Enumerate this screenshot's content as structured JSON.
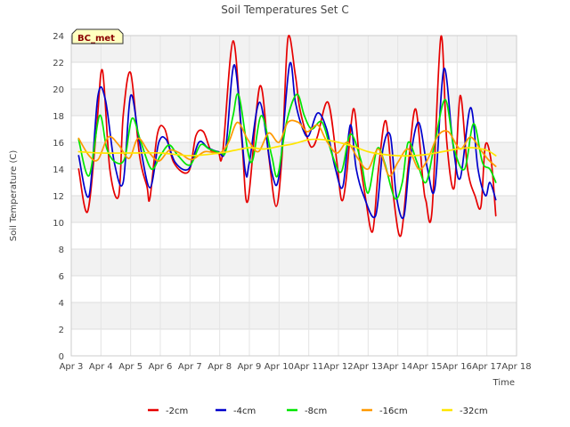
{
  "chart_data": {
    "type": "line",
    "title": "Soil Temperatures Set C",
    "xlabel": "Time",
    "ylabel": "Soil Temperature (C)",
    "badge": "BC_met",
    "ylim": [
      0,
      24
    ],
    "xlim": [
      0,
      15
    ],
    "y_ticks": [
      0,
      2,
      4,
      6,
      8,
      10,
      12,
      14,
      16,
      18,
      20,
      22,
      24
    ],
    "x_ticks": [
      {
        "value": 0,
        "label": "Apr 3"
      },
      {
        "value": 1,
        "label": "Apr 4"
      },
      {
        "value": 2,
        "label": "Apr 5"
      },
      {
        "value": 3,
        "label": "Apr 6"
      },
      {
        "value": 4,
        "label": "Apr 7"
      },
      {
        "value": 5,
        "label": "Apr 8"
      },
      {
        "value": 6,
        "label": "Apr 9"
      },
      {
        "value": 7,
        "label": "Apr 10"
      },
      {
        "value": 8,
        "label": "Apr 11"
      },
      {
        "value": 9,
        "label": "Apr 12"
      },
      {
        "value": 10,
        "label": "Apr 13"
      },
      {
        "value": 11,
        "label": "Apr 14"
      },
      {
        "value": 12,
        "label": "Apr 15"
      },
      {
        "value": 13,
        "label": "Apr 16"
      },
      {
        "value": 14,
        "label": "Apr 17"
      },
      {
        "value": 15,
        "label": "Apr 18"
      }
    ],
    "grid": true,
    "legend_position": "bottom",
    "series": [
      {
        "name": "-2cm",
        "color": "#e60000",
        "x": [
          0.25,
          0.55,
          0.85,
          1.05,
          1.3,
          1.6,
          1.75,
          2.0,
          2.3,
          2.55,
          2.65,
          2.9,
          3.15,
          3.45,
          3.95,
          4.2,
          4.45,
          4.7,
          4.95,
          5.1,
          5.45,
          5.75,
          5.95,
          6.35,
          6.65,
          6.9,
          7.1,
          7.3,
          7.55,
          7.7,
          8.0,
          8.15,
          8.3,
          8.65,
          8.95,
          9.1,
          9.25,
          9.5,
          9.7,
          9.9,
          10.15,
          10.35,
          10.6,
          10.85,
          11.1,
          11.35,
          11.6,
          11.85,
          11.95,
          12.15,
          12.45,
          12.65,
          12.9,
          13.1,
          13.35,
          13.6,
          13.8,
          13.95,
          14.15,
          14.3
        ],
        "y": [
          14,
          10.8,
          17,
          21.4,
          14,
          12,
          18,
          21.2,
          15,
          12.7,
          11.8,
          16.6,
          17,
          14.5,
          13.8,
          16.5,
          16.8,
          15.4,
          15.3,
          15.2,
          23.6,
          16,
          11.6,
          20.2,
          15,
          11.2,
          15,
          23.8,
          21,
          18.5,
          16,
          15.7,
          16.5,
          19,
          14.5,
          11.7,
          13,
          18.5,
          15,
          12,
          9.3,
          14,
          17.6,
          12,
          9,
          14.2,
          18.5,
          13,
          11.6,
          10.8,
          23.9,
          16,
          12.6,
          19.5,
          14,
          12,
          11.2,
          15.8,
          14.5,
          10.5
        ]
      },
      {
        "name": "-4cm",
        "color": "#0000cc",
        "x": [
          0.25,
          0.6,
          0.9,
          1.15,
          1.45,
          1.75,
          2.0,
          2.3,
          2.65,
          2.95,
          3.2,
          3.5,
          3.95,
          4.3,
          4.6,
          4.95,
          5.2,
          5.5,
          5.85,
          6.0,
          6.35,
          6.75,
          7.0,
          7.35,
          7.55,
          7.8,
          8.0,
          8.3,
          8.6,
          8.9,
          9.15,
          9.4,
          9.6,
          9.85,
          10.25,
          10.5,
          10.75,
          10.95,
          11.2,
          11.4,
          11.7,
          12.0,
          12.25,
          12.55,
          12.85,
          13.1,
          13.45,
          13.7,
          13.95,
          14.1,
          14.3
        ],
        "y": [
          15,
          12,
          19.5,
          19.2,
          14.5,
          13,
          19.5,
          16,
          12.6,
          16,
          16.2,
          14.5,
          14,
          16,
          15.6,
          15.3,
          15.5,
          21.8,
          14,
          14.5,
          19,
          13.8,
          13.5,
          21.8,
          19,
          17,
          16.5,
          18.2,
          17,
          14,
          12.7,
          17.3,
          14,
          12,
          10.5,
          15.5,
          16.5,
          12,
          10.4,
          14.5,
          17.5,
          14,
          12.6,
          21.5,
          16,
          13.3,
          18.6,
          14,
          12,
          13,
          11.7
        ]
      },
      {
        "name": "-8cm",
        "color": "#00e600",
        "x": [
          0.25,
          0.6,
          0.95,
          1.2,
          1.5,
          1.8,
          2.05,
          2.35,
          2.7,
          3.0,
          3.3,
          3.6,
          4.0,
          4.35,
          4.65,
          5.05,
          5.2,
          5.45,
          5.65,
          6.05,
          6.4,
          6.75,
          6.95,
          7.25,
          7.6,
          7.85,
          8.1,
          8.45,
          8.8,
          9.1,
          9.4,
          9.75,
          10.0,
          10.3,
          10.55,
          10.9,
          11.15,
          11.35,
          11.65,
          11.95,
          12.25,
          12.6,
          12.9,
          13.25,
          13.55,
          13.85,
          14.1,
          14.3
        ],
        "y": [
          16.2,
          13.5,
          18,
          15.5,
          14.5,
          14.8,
          17.8,
          16,
          14,
          15,
          15.8,
          15,
          14.3,
          15.8,
          15.5,
          15.2,
          15.3,
          18,
          19.5,
          14.5,
          18,
          15,
          13.5,
          17.5,
          19.6,
          18,
          17,
          17.5,
          15,
          13.8,
          16.6,
          14.7,
          12.2,
          15.5,
          14.5,
          11.8,
          13,
          16,
          14.5,
          13,
          16,
          19.2,
          15.5,
          14,
          17.4,
          14.5,
          14,
          13
        ]
      },
      {
        "name": "-16cm",
        "color": "#ff9900",
        "x": [
          0.25,
          0.6,
          0.9,
          1.25,
          1.6,
          1.95,
          2.25,
          2.6,
          2.95,
          3.3,
          3.65,
          4.05,
          4.5,
          5.0,
          5.3,
          5.6,
          5.95,
          6.3,
          6.65,
          7.0,
          7.3,
          7.65,
          7.95,
          8.3,
          8.6,
          8.95,
          9.3,
          9.65,
          10.0,
          10.35,
          10.7,
          11.0,
          11.35,
          11.7,
          12.0,
          12.35,
          12.7,
          13.1,
          13.45,
          13.8,
          14.05,
          14.3
        ],
        "y": [
          16.3,
          15,
          14.7,
          16.4,
          15.8,
          14.8,
          16.3,
          15.3,
          14.6,
          15.4,
          15.2,
          14.7,
          15.3,
          15.2,
          16,
          17.5,
          16.2,
          15.3,
          16.7,
          16,
          17.5,
          17.5,
          16.8,
          17.3,
          16.1,
          15.2,
          16,
          14.8,
          14,
          15.5,
          13.5,
          14.5,
          15.5,
          14,
          14.7,
          16.5,
          16.8,
          15.5,
          16.4,
          15.4,
          14.7,
          14.2
        ]
      },
      {
        "name": "-32cm",
        "color": "#ffe600",
        "x": [
          0.25,
          1.0,
          2.0,
          3.0,
          4.0,
          5.0,
          5.5,
          6.0,
          6.5,
          7.0,
          7.5,
          8.0,
          8.5,
          9.0,
          9.5,
          10.0,
          10.5,
          11.0,
          11.5,
          12.0,
          12.5,
          13.0,
          13.5,
          14.0,
          14.3
        ],
        "y": [
          15.3,
          15.2,
          15.2,
          15.2,
          15.0,
          15.2,
          15.4,
          15.6,
          15.5,
          15.7,
          15.9,
          16.2,
          16.2,
          16.0,
          15.7,
          15.3,
          15.1,
          15.0,
          15.0,
          15.1,
          15.3,
          15.5,
          15.6,
          15.4,
          15.0
        ]
      }
    ]
  }
}
